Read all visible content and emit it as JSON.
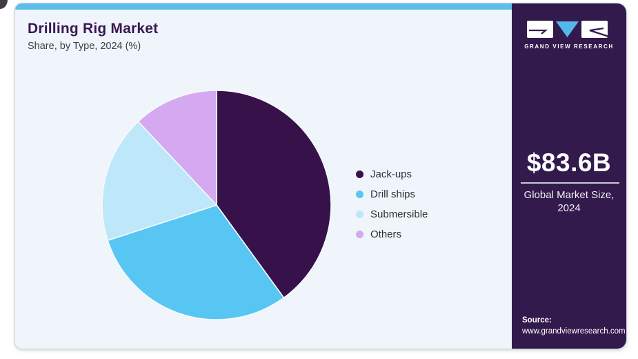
{
  "brand": {
    "name": "GRAND VIEW RESEARCH"
  },
  "header": {
    "title": "Drilling Rig Market",
    "subtitle": "Share, by Type, 2024 (%)"
  },
  "chart_data": {
    "type": "pie",
    "title": "Drilling Rig Market Share, by Type, 2024 (%)",
    "categories": [
      "Jack-ups",
      "Drill ships",
      "Submersible",
      "Others"
    ],
    "values": [
      40,
      30,
      18,
      12
    ],
    "unit": "%",
    "colors": [
      "#37114a",
      "#58c6f3",
      "#bfe7fa",
      "#d4a9ef"
    ],
    "start_angle_deg": 0,
    "direction": "clockwise",
    "legend_position": "right"
  },
  "sidebar": {
    "market_size_value": "$83.6B",
    "market_size_label": "Global Market Size, 2024",
    "source_label": "Source:",
    "source_url": "www.grandviewresearch.com",
    "background_color": "#331a4d",
    "accent_color": "#5ac0e9"
  }
}
